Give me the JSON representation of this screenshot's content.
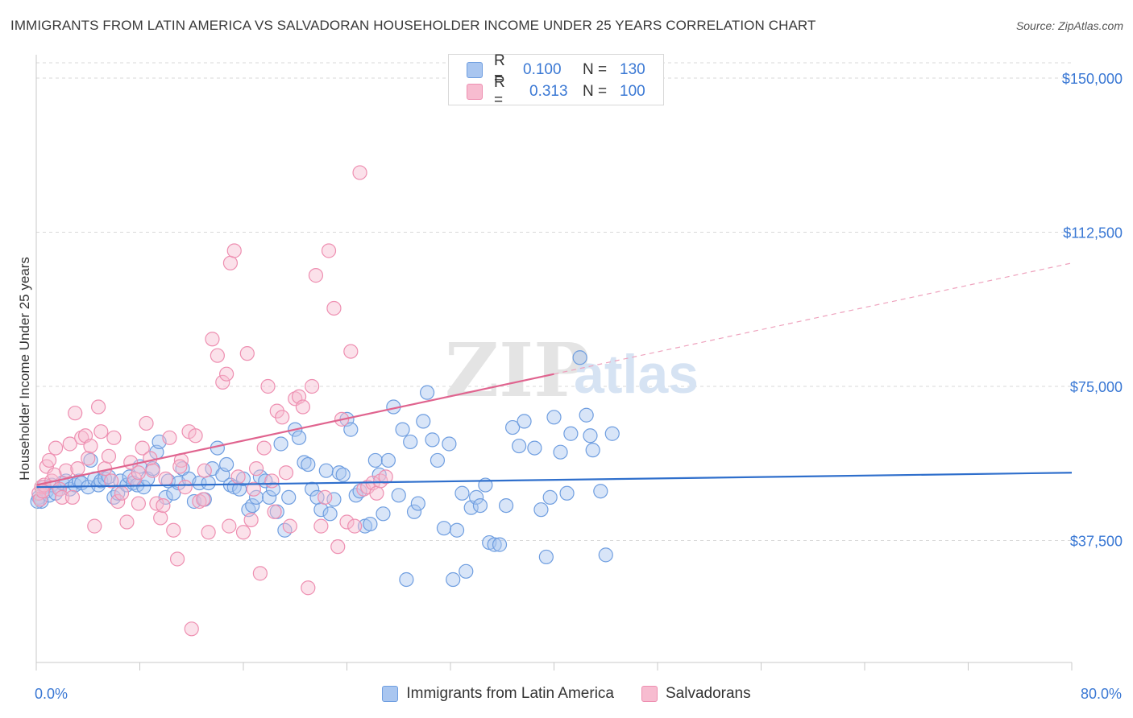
{
  "title": "IMMIGRANTS FROM LATIN AMERICA VS SALVADORAN HOUSEHOLDER INCOME UNDER 25 YEARS CORRELATION CHART",
  "source": "Source: ZipAtlas.com",
  "watermark": {
    "zip": "ZIP",
    "atlas": "atlas"
  },
  "legend_stats": [
    {
      "r_label": "R =",
      "r_value": "0.100",
      "n_label": "N =",
      "n_value": "130",
      "color": "#a9c6f0",
      "border": "#6f9ee0"
    },
    {
      "r_label": "R =",
      "r_value": "0.313",
      "n_label": "N =",
      "n_value": "100",
      "color": "#f7bcd0",
      "border": "#ee8fb1"
    }
  ],
  "bottom_legend": [
    {
      "label": "Immigrants from Latin America",
      "color": "#a9c6f0",
      "border": "#6f9ee0"
    },
    {
      "label": "Salvadorans",
      "color": "#f7bcd0",
      "border": "#ee8fb1"
    }
  ],
  "chart_data": {
    "type": "scatter",
    "title": "IMMIGRANTS FROM LATIN AMERICA VS SALVADORAN HOUSEHOLDER INCOME UNDER 25 YEARS CORRELATION CHART",
    "xlabel": "",
    "ylabel": "Householder Income Under 25 years",
    "xlim": [
      0,
      80
    ],
    "ylim": [
      0,
      155000
    ],
    "x_tick_labels": [
      "0.0%",
      "80.0%"
    ],
    "y_ticks": [
      37500,
      75000,
      112500,
      150000
    ],
    "y_tick_labels": [
      "$37,500",
      "$75,000",
      "$112,500",
      "$150,000"
    ],
    "grid": true,
    "legend_position": "top-center",
    "series": [
      {
        "name": "Immigrants from Latin America",
        "color": "#6f9ee0",
        "fill": "rgba(169,198,240,0.45)",
        "trend": {
          "x0": 0,
          "y0": 50500,
          "x1": 80,
          "y1": 54000
        },
        "points": [
          [
            0.2,
            48000
          ],
          [
            0.4,
            47000
          ],
          [
            0.6,
            50500
          ],
          [
            0.8,
            49500
          ],
          [
            1.0,
            48500
          ],
          [
            1.2,
            51000
          ],
          [
            1.5,
            49000
          ],
          [
            1.8,
            50000
          ],
          [
            2.0,
            51500
          ],
          [
            2.3,
            52000
          ],
          [
            2.6,
            50000
          ],
          [
            3.0,
            51000
          ],
          [
            3.3,
            52000
          ],
          [
            3.5,
            51500
          ],
          [
            4.0,
            50500
          ],
          [
            4.2,
            57000
          ],
          [
            4.5,
            52500
          ],
          [
            4.8,
            51000
          ],
          [
            5.0,
            52000
          ],
          [
            5.3,
            52500
          ],
          [
            5.6,
            53000
          ],
          [
            6.0,
            48000
          ],
          [
            6.3,
            49000
          ],
          [
            6.5,
            52000
          ],
          [
            7.0,
            51000
          ],
          [
            7.2,
            53000
          ],
          [
            7.5,
            51500
          ],
          [
            7.8,
            51000
          ],
          [
            8.0,
            55500
          ],
          [
            8.3,
            50500
          ],
          [
            8.6,
            52500
          ],
          [
            9.0,
            55000
          ],
          [
            9.3,
            59000
          ],
          [
            9.5,
            61500
          ],
          [
            10.0,
            48000
          ],
          [
            10.2,
            52000
          ],
          [
            10.6,
            49000
          ],
          [
            11.0,
            51500
          ],
          [
            11.3,
            55000
          ],
          [
            11.8,
            52500
          ],
          [
            12.2,
            47000
          ],
          [
            12.6,
            51500
          ],
          [
            13.0,
            47500
          ],
          [
            13.3,
            51500
          ],
          [
            13.6,
            55000
          ],
          [
            14.0,
            60000
          ],
          [
            14.4,
            53500
          ],
          [
            14.7,
            56000
          ],
          [
            15.0,
            51000
          ],
          [
            15.3,
            50500
          ],
          [
            15.7,
            50000
          ],
          [
            16.0,
            52500
          ],
          [
            16.4,
            45000
          ],
          [
            16.7,
            46000
          ],
          [
            17.0,
            48000
          ],
          [
            17.3,
            53000
          ],
          [
            17.7,
            52000
          ],
          [
            18.0,
            48000
          ],
          [
            18.3,
            50000
          ],
          [
            18.6,
            44500
          ],
          [
            18.9,
            61000
          ],
          [
            19.2,
            40000
          ],
          [
            19.5,
            48000
          ],
          [
            20.0,
            64500
          ],
          [
            20.3,
            62500
          ],
          [
            20.7,
            56500
          ],
          [
            21.0,
            56000
          ],
          [
            21.3,
            50000
          ],
          [
            21.7,
            48000
          ],
          [
            22.0,
            45000
          ],
          [
            22.4,
            54500
          ],
          [
            22.7,
            44000
          ],
          [
            23.0,
            47500
          ],
          [
            23.4,
            54000
          ],
          [
            23.7,
            53500
          ],
          [
            24.0,
            67000
          ],
          [
            24.3,
            64500
          ],
          [
            24.7,
            48500
          ],
          [
            25.0,
            49500
          ],
          [
            25.4,
            41000
          ],
          [
            25.8,
            41500
          ],
          [
            26.2,
            57000
          ],
          [
            26.5,
            53500
          ],
          [
            26.8,
            44000
          ],
          [
            27.2,
            57000
          ],
          [
            27.6,
            70000
          ],
          [
            28.0,
            48500
          ],
          [
            28.3,
            64500
          ],
          [
            28.6,
            28000
          ],
          [
            28.9,
            61500
          ],
          [
            29.2,
            44500
          ],
          [
            29.5,
            46500
          ],
          [
            29.9,
            66500
          ],
          [
            30.2,
            73500
          ],
          [
            30.6,
            62000
          ],
          [
            31.0,
            57000
          ],
          [
            31.5,
            40500
          ],
          [
            31.9,
            61000
          ],
          [
            32.2,
            28000
          ],
          [
            32.5,
            40000
          ],
          [
            32.9,
            49000
          ],
          [
            33.2,
            30000
          ],
          [
            33.6,
            45500
          ],
          [
            34.0,
            48000
          ],
          [
            34.3,
            46000
          ],
          [
            34.7,
            51000
          ],
          [
            35.0,
            37000
          ],
          [
            35.4,
            36500
          ],
          [
            35.8,
            36500
          ],
          [
            36.3,
            46000
          ],
          [
            36.8,
            65000
          ],
          [
            37.3,
            60500
          ],
          [
            37.7,
            66500
          ],
          [
            38.5,
            60000
          ],
          [
            39.0,
            45000
          ],
          [
            39.4,
            33500
          ],
          [
            39.7,
            48000
          ],
          [
            40.0,
            67500
          ],
          [
            40.5,
            59000
          ],
          [
            41.0,
            49000
          ],
          [
            41.3,
            63500
          ],
          [
            42.0,
            82000
          ],
          [
            42.5,
            68000
          ],
          [
            42.8,
            63000
          ],
          [
            43.0,
            59500
          ],
          [
            43.6,
            49500
          ],
          [
            44.0,
            34000
          ],
          [
            44.5,
            63500
          ],
          [
            0.1,
            47000
          ]
        ]
      },
      {
        "name": "Salvadorans",
        "color": "#ee8fb1",
        "fill": "rgba(247,188,208,0.45)",
        "trend": {
          "x0": 0,
          "y0": 51000,
          "x1": 40,
          "y1": 78000
        },
        "trend_dashed": {
          "x0": 40,
          "y0": 78000,
          "x1": 80,
          "y1": 105000
        },
        "points": [
          [
            0.2,
            49000
          ],
          [
            0.4,
            50500
          ],
          [
            0.6,
            51000
          ],
          [
            0.8,
            55500
          ],
          [
            1.0,
            57000
          ],
          [
            1.2,
            52000
          ],
          [
            1.5,
            60000
          ],
          [
            1.8,
            50000
          ],
          [
            2.0,
            48000
          ],
          [
            2.3,
            54500
          ],
          [
            2.6,
            61000
          ],
          [
            3.0,
            68500
          ],
          [
            3.2,
            55000
          ],
          [
            3.5,
            62500
          ],
          [
            3.8,
            63000
          ],
          [
            4.0,
            57500
          ],
          [
            4.2,
            60500
          ],
          [
            4.5,
            41000
          ],
          [
            4.8,
            70000
          ],
          [
            5.0,
            64000
          ],
          [
            5.3,
            55000
          ],
          [
            5.6,
            58000
          ],
          [
            6.0,
            62500
          ],
          [
            6.3,
            47000
          ],
          [
            6.6,
            49000
          ],
          [
            7.0,
            42000
          ],
          [
            7.3,
            56500
          ],
          [
            7.6,
            52500
          ],
          [
            7.9,
            46500
          ],
          [
            8.2,
            60000
          ],
          [
            8.5,
            66000
          ],
          [
            8.8,
            57500
          ],
          [
            9.0,
            54500
          ],
          [
            9.3,
            46500
          ],
          [
            9.6,
            43000
          ],
          [
            10.0,
            52500
          ],
          [
            10.3,
            62500
          ],
          [
            10.6,
            40000
          ],
          [
            10.9,
            33000
          ],
          [
            11.2,
            57000
          ],
          [
            11.5,
            50500
          ],
          [
            11.8,
            64000
          ],
          [
            12.0,
            16000
          ],
          [
            12.3,
            63000
          ],
          [
            12.6,
            47000
          ],
          [
            13.0,
            54500
          ],
          [
            13.3,
            39500
          ],
          [
            13.6,
            86500
          ],
          [
            14.0,
            82500
          ],
          [
            14.4,
            76000
          ],
          [
            14.7,
            78000
          ],
          [
            15.0,
            105000
          ],
          [
            15.3,
            108000
          ],
          [
            15.6,
            53000
          ],
          [
            16.0,
            39500
          ],
          [
            16.3,
            83000
          ],
          [
            16.6,
            42500
          ],
          [
            17.0,
            55000
          ],
          [
            17.3,
            29500
          ],
          [
            17.6,
            60000
          ],
          [
            17.9,
            75000
          ],
          [
            18.2,
            52000
          ],
          [
            18.6,
            69000
          ],
          [
            19.0,
            67500
          ],
          [
            19.3,
            54000
          ],
          [
            19.6,
            41000
          ],
          [
            20.0,
            72000
          ],
          [
            20.3,
            72500
          ],
          [
            20.6,
            70000
          ],
          [
            21.0,
            26000
          ],
          [
            21.3,
            75000
          ],
          [
            21.6,
            102000
          ],
          [
            22.0,
            41000
          ],
          [
            22.3,
            48000
          ],
          [
            22.6,
            108000
          ],
          [
            23.0,
            94000
          ],
          [
            23.3,
            36000
          ],
          [
            23.6,
            67000
          ],
          [
            24.0,
            42000
          ],
          [
            24.3,
            83500
          ],
          [
            24.6,
            41000
          ],
          [
            25.0,
            127000
          ],
          [
            25.3,
            50000
          ],
          [
            25.6,
            50500
          ],
          [
            26.0,
            51500
          ],
          [
            26.3,
            49000
          ],
          [
            26.6,
            52000
          ],
          [
            27.0,
            53000
          ],
          [
            0.3,
            47500
          ],
          [
            0.5,
            49500
          ],
          [
            1.4,
            53500
          ],
          [
            2.8,
            48000
          ],
          [
            5.8,
            52000
          ],
          [
            7.9,
            54000
          ],
          [
            9.8,
            46000
          ],
          [
            11.1,
            55500
          ],
          [
            12.9,
            47500
          ],
          [
            14.9,
            41000
          ],
          [
            16.8,
            50000
          ],
          [
            18.4,
            44500
          ]
        ]
      }
    ]
  }
}
